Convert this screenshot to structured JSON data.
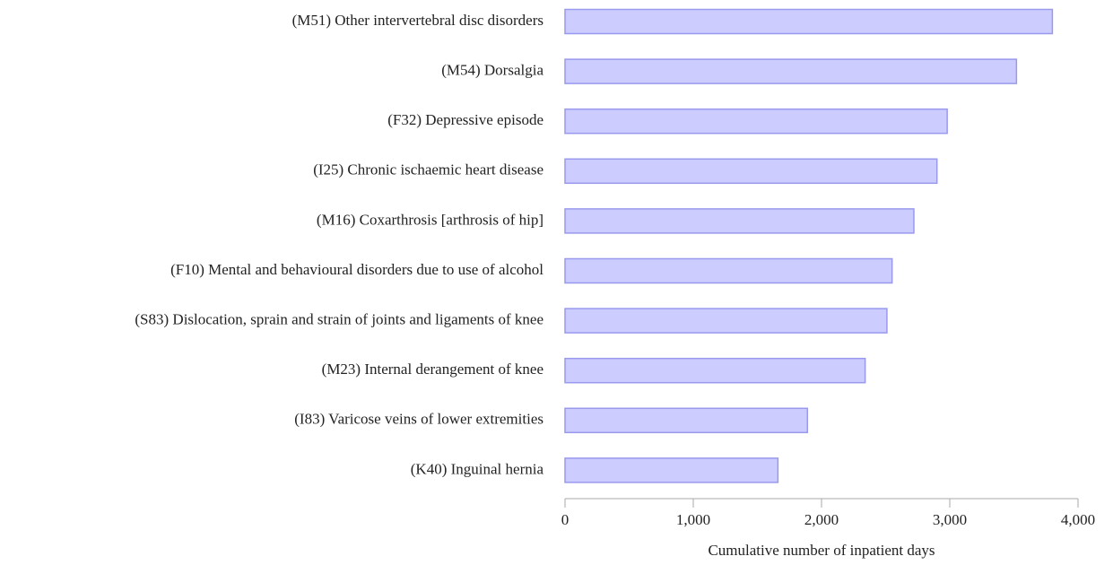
{
  "chart_data": {
    "type": "bar",
    "orientation": "horizontal",
    "x_label": "Cumulative number of inpatient days",
    "categories": [
      "(M51) Other intervertebral disc disorders",
      "(M54) Dorsalgia",
      "(F32) Depressive episode",
      "(I25) Chronic ischaemic heart disease",
      "(M16) Coxarthrosis [arthrosis of hip]",
      "(F10) Mental and behavioural disorders due to use of alcohol",
      "(S83) Dislocation, sprain and strain of joints and ligaments of knee",
      "(M23) Internal derangement of knee",
      "(I83) Varicose veins of lower extremities",
      "(K40) Inguinal hernia"
    ],
    "values": [
      3800,
      3520,
      2980,
      2900,
      2720,
      2550,
      2510,
      2340,
      1890,
      1660
    ],
    "color": "#ccccff",
    "edge_color": "#9999ee",
    "xlim": [
      0,
      4000
    ],
    "xticks": [
      0,
      {
        "value": 1000,
        "label": "1,000"
      },
      {
        "value": 2000,
        "label": "2,000"
      },
      {
        "value": 3000,
        "label": "3,000"
      },
      {
        "value": 4000,
        "label": "4,000"
      }
    ]
  }
}
